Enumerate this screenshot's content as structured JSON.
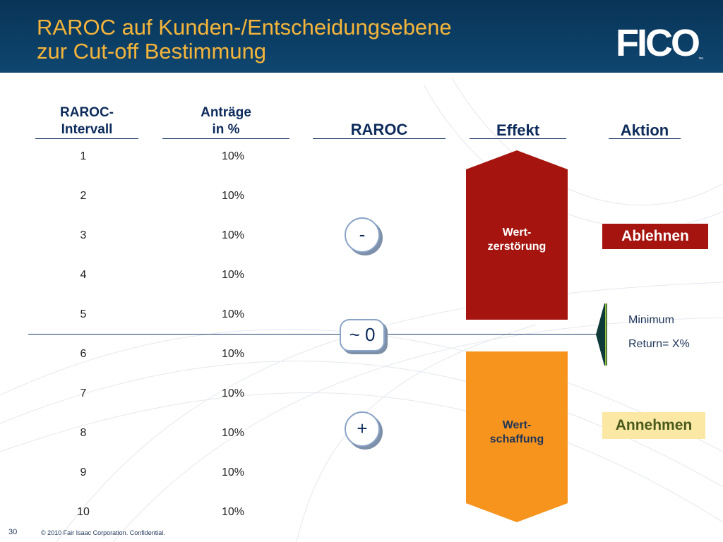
{
  "title": {
    "line1": "RAROC auf Kunden-/Entscheidungsebene",
    "line2": "zur Cut-off Bestimmung"
  },
  "logo": {
    "text": "FICO",
    "tm": "™"
  },
  "columns": {
    "interval": {
      "line1": "RAROC-",
      "line2": "Intervall"
    },
    "antraege": {
      "line1": "Anträge",
      "line2": "in %"
    },
    "raroc": "RAROC",
    "effekt": "Effekt",
    "aktion": "Aktion"
  },
  "rows": [
    {
      "interval": "1",
      "pct": "10%"
    },
    {
      "interval": "2",
      "pct": "10%"
    },
    {
      "interval": "3",
      "pct": "10%"
    },
    {
      "interval": "4",
      "pct": "10%"
    },
    {
      "interval": "5",
      "pct": "10%"
    },
    {
      "interval": "6",
      "pct": "10%"
    },
    {
      "interval": "7",
      "pct": "10%"
    },
    {
      "interval": "8",
      "pct": "10%"
    },
    {
      "interval": "9",
      "pct": "10%"
    },
    {
      "interval": "10",
      "pct": "10%"
    }
  ],
  "raroc_markers": {
    "minus": "-",
    "zero": "~ 0",
    "plus": "+"
  },
  "effekt": {
    "destruction": {
      "line1": "Wert-",
      "line2": "zerstörung",
      "color": "#a5140e"
    },
    "creation": {
      "line1": "Wert-",
      "line2": "schaffung",
      "color": "#f7941d"
    }
  },
  "aktion": {
    "reject": "Ablehnen",
    "accept": "Annehmen"
  },
  "threshold": {
    "line1": "Minimum",
    "line2": "Return= X%"
  },
  "footer": {
    "page": "30",
    "copyright": "© 2010 Fair Isaac Corporation. Confidential."
  },
  "colors": {
    "header": "#0a3a60",
    "title": "#f5b53a",
    "heading": "#0d2b5b"
  }
}
